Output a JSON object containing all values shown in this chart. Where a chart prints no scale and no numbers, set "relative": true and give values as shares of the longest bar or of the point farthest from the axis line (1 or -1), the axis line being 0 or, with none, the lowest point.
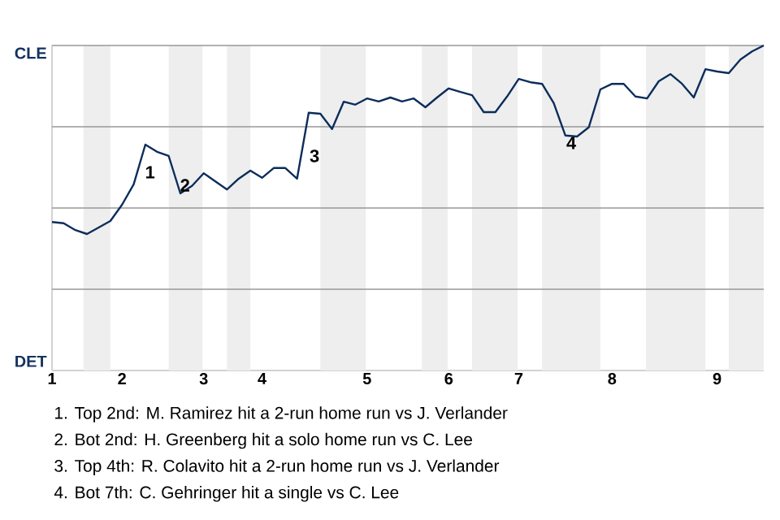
{
  "chart_data": {
    "type": "line",
    "relative": true,
    "categories": [
      "1",
      null,
      null,
      null,
      null,
      null,
      "2",
      null,
      null,
      null,
      null,
      null,
      null,
      "3",
      null,
      null,
      null,
      null,
      "4",
      null,
      null,
      null,
      null,
      null,
      null,
      null,
      null,
      "5",
      null,
      null,
      null,
      null,
      null,
      null,
      "6",
      null,
      null,
      null,
      null,
      null,
      "7",
      null,
      null,
      null,
      null,
      null,
      null,
      null,
      "8",
      null,
      null,
      null,
      null,
      null,
      null,
      null,
      null,
      "9",
      null,
      null,
      null,
      null
    ],
    "series": [
      {
        "color": "#0b2d5b",
        "values": [
          0.457,
          0.453,
          0.432,
          0.42,
          0.44,
          0.46,
          0.51,
          0.573,
          0.695,
          0.673,
          0.66,
          0.545,
          0.568,
          0.607,
          0.582,
          0.557,
          0.59,
          0.615,
          0.593,
          0.623,
          0.623,
          0.59,
          0.793,
          0.79,
          0.743,
          0.827,
          0.818,
          0.837,
          0.828,
          0.84,
          0.828,
          0.837,
          0.81,
          0.84,
          0.868,
          0.857,
          0.847,
          0.795,
          0.795,
          0.843,
          0.897,
          0.887,
          0.882,
          0.823,
          0.723,
          0.72,
          0.748,
          0.865,
          0.882,
          0.882,
          0.843,
          0.837,
          0.89,
          0.912,
          0.882,
          0.84,
          0.927,
          0.92,
          0.915,
          0.957,
          0.982,
          1
        ]
      }
    ],
    "line_style": "solid",
    "ref_lines": [
      {
        "axis": "y",
        "value": 0.25,
        "color": "#999999"
      },
      {
        "axis": "y",
        "value": 0.5,
        "color": "#999999"
      },
      {
        "axis": "y",
        "value": 0.75,
        "color": "#999999"
      },
      {
        "axis": "y",
        "value": 1,
        "color": "#999999"
      }
    ],
    "annotations": [
      "CLE",
      "DET",
      "1",
      "2",
      "3",
      "4",
      "1. Top 2nd: M. Ramirez hit a 2-run home run vs J. Verlander",
      "2. Bot 2nd: H. Greenberg hit a solo home run vs C. Lee",
      "3. Top 4th: R. Colavito hit a 2-run home run vs J. Verlander",
      "4. Bot 7th: C. Gehringer hit a single vs C. Lee"
    ]
  }
}
